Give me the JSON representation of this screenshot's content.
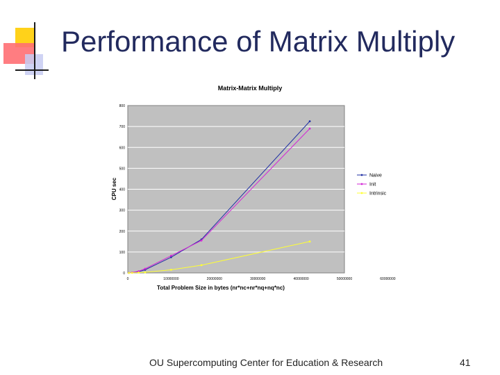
{
  "slide": {
    "title": "Performance of Matrix Multiply",
    "footer": "OU Supercomputing Center for Education & Research",
    "page_number": "41"
  },
  "colors": {
    "title": "#222a5e",
    "plot_background": "#c0c0c0",
    "gridline": "#ffffff",
    "naive": "#1f2fa3",
    "init": "#d326d6",
    "intrinsic": "#ffff33"
  },
  "chart_data": {
    "type": "line",
    "title": "Matrix-Matrix Multiply",
    "xlabel": "Total Problem Size in bytes (nr*nc+nr*nq+nq*nc)",
    "ylabel": "CPU sec",
    "xlim": [
      0,
      50000000
    ],
    "ylim": [
      0,
      800
    ],
    "x_ticks": [
      0,
      10000000,
      20000000,
      30000000,
      40000000,
      50000000,
      60000000
    ],
    "x_tick_labels": [
      "0",
      "10000000",
      "20000000",
      "30000000",
      "40000000",
      "50000000",
      "60000000"
    ],
    "y_ticks": [
      0,
      100,
      200,
      300,
      400,
      500,
      600,
      700,
      800
    ],
    "y_tick_labels": [
      "0",
      "100",
      "200",
      "300",
      "400",
      "500",
      "600",
      "700",
      "800"
    ],
    "grid": true,
    "legend_position": "right",
    "series": [
      {
        "name": "Naive",
        "color": "#1f2fa3",
        "x": [
          250000,
          1000000,
          2500000,
          4000000,
          10000000,
          17000000,
          42000000
        ],
        "y": [
          0.3,
          1.5,
          6,
          15,
          75,
          160,
          725
        ]
      },
      {
        "name": "Init",
        "color": "#d326d6",
        "x": [
          250000,
          1000000,
          2500000,
          4000000,
          10000000,
          17000000,
          42000000
        ],
        "y": [
          0.3,
          2,
          8,
          20,
          82,
          155,
          690
        ]
      },
      {
        "name": "Intrinsic",
        "color": "#ffff33",
        "x": [
          250000,
          1000000,
          2500000,
          4000000,
          10000000,
          17000000,
          42000000
        ],
        "y": [
          0.1,
          0.3,
          1.5,
          3,
          15,
          37,
          150
        ]
      }
    ]
  }
}
